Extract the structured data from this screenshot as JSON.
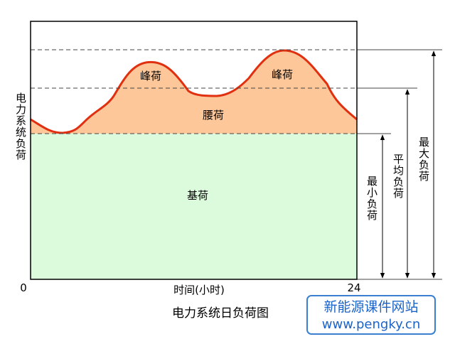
{
  "y_axis_label": "电力系统负荷",
  "x_axis": {
    "start": "0",
    "end": "24",
    "label": "时间(小时)"
  },
  "title": "电力系统日负荷图",
  "regions": {
    "peak_left": "峰荷",
    "peak_right": "峰荷",
    "middle": "腰荷",
    "base": "基荷"
  },
  "levels": {
    "min": "最小负荷",
    "average": "平均负荷",
    "max": "最大负荷"
  },
  "watermark": {
    "name": "新能源课件网站",
    "url": "www.pengky.cn"
  }
}
